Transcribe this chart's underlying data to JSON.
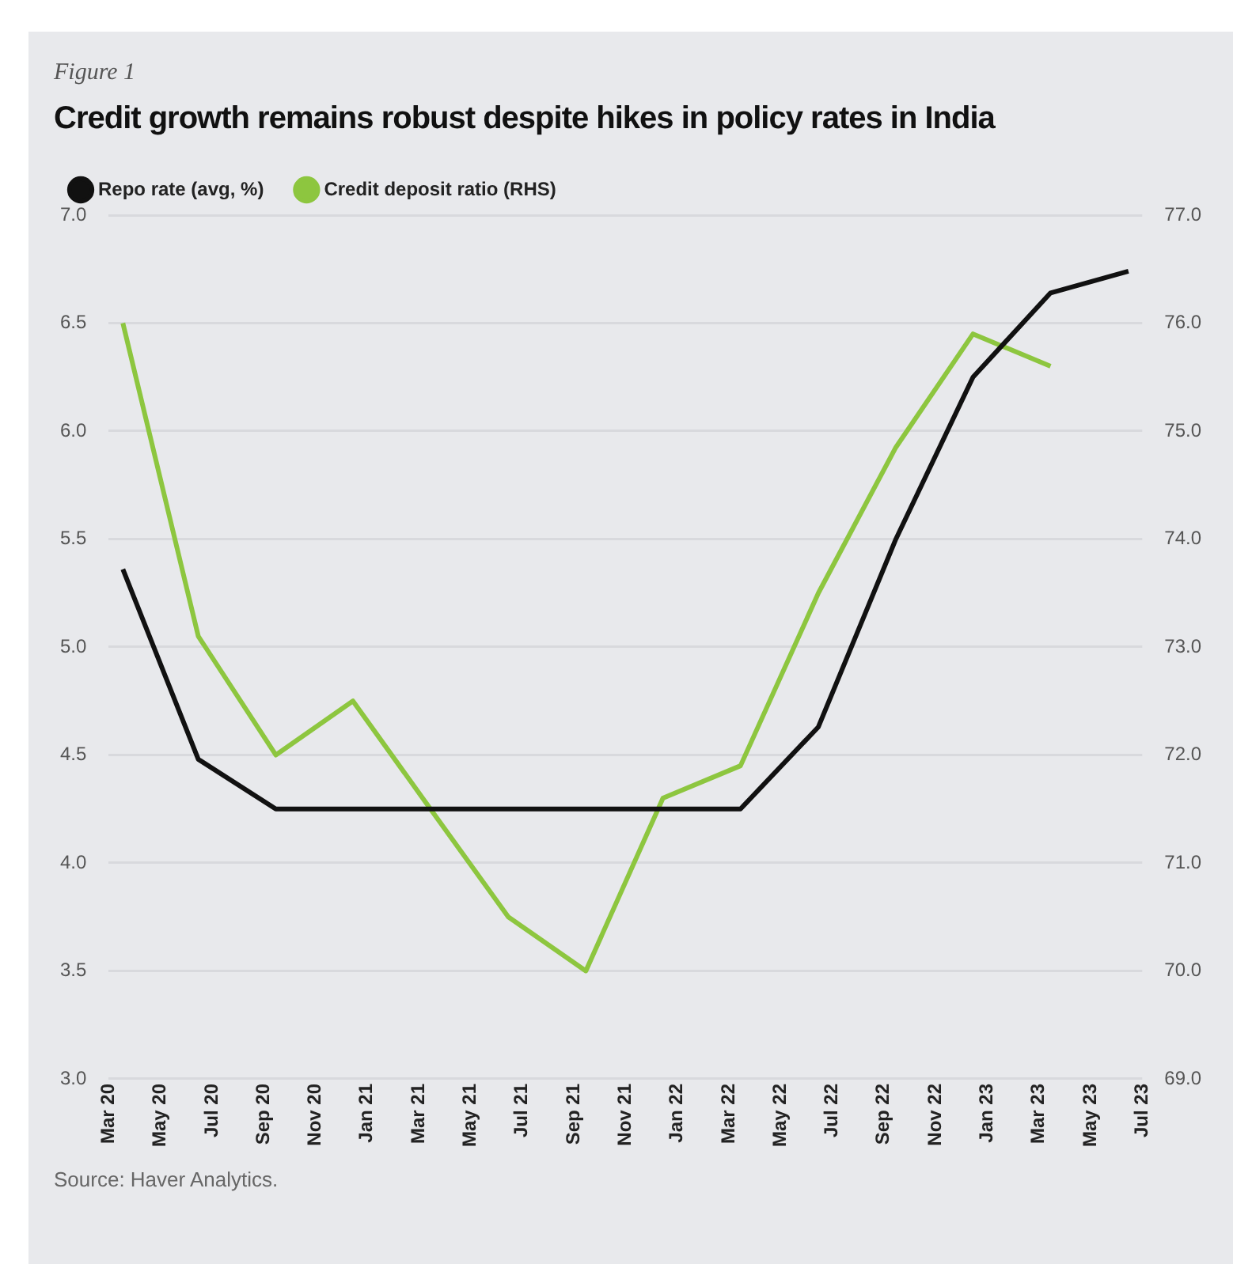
{
  "chart_data": {
    "type": "line",
    "subtitle": "Figure 1",
    "title": "Credit growth remains robust despite hikes in policy rates in India",
    "series": [
      {
        "name": "Repo rate (avg, %)",
        "color": "#111111",
        "x": [
          "2020-03-18",
          "2020-06-15",
          "2020-09-15",
          "2020-12-15",
          "2021-03-15",
          "2021-06-15",
          "2021-09-15",
          "2021-12-15",
          "2022-03-15",
          "2022-06-15",
          "2022-09-15",
          "2022-12-15",
          "2023-03-15",
          "2023-06-15"
        ],
        "values": [
          5.36,
          4.48,
          4.25,
          4.25,
          4.25,
          4.25,
          4.25,
          4.25,
          4.25,
          4.63,
          5.5,
          6.25,
          6.64,
          6.74
        ]
      },
      {
        "name": "Credit deposit ratio (RHS)",
        "color": "#8dc63f",
        "axis": "y2",
        "x": [
          "2020-03-18",
          "2020-06-15",
          "2020-09-15",
          "2020-12-15",
          "2021-03-15",
          "2021-06-15",
          "2021-09-15",
          "2021-12-15",
          "2022-03-15",
          "2022-06-15",
          "2022-09-15",
          "2022-12-15",
          "2023-03-15"
        ],
        "values": [
          76.0,
          73.1,
          72.0,
          72.5,
          71.5,
          70.5,
          70.0,
          71.6,
          71.9,
          73.5,
          74.85,
          75.9,
          75.6
        ]
      }
    ],
    "xlim": [
      "2020-03",
      "2023-07"
    ],
    "xticks": [
      {
        "value": "2020-03",
        "label": "Mar 20"
      },
      {
        "value": "2020-05",
        "label": "May 20"
      },
      {
        "value": "2020-07",
        "label": "Jul 20"
      },
      {
        "value": "2020-09",
        "label": "Sep 20"
      },
      {
        "value": "2020-11",
        "label": "Nov 20"
      },
      {
        "value": "2021-01",
        "label": "Jan 21"
      },
      {
        "value": "2021-03",
        "label": "Mar 21"
      },
      {
        "value": "2021-05",
        "label": "May 21"
      },
      {
        "value": "2021-07",
        "label": "Jul 21"
      },
      {
        "value": "2021-09",
        "label": "Sep 21"
      },
      {
        "value": "2021-11",
        "label": "Nov 21"
      },
      {
        "value": "2022-01",
        "label": "Jan 22"
      },
      {
        "value": "2022-03",
        "label": "Mar 22"
      },
      {
        "value": "2022-05",
        "label": "May 22"
      },
      {
        "value": "2022-07",
        "label": "Jul 22"
      },
      {
        "value": "2022-09",
        "label": "Sep 22"
      },
      {
        "value": "2022-11",
        "label": "Nov 22"
      },
      {
        "value": "2023-01",
        "label": "Jan 23"
      },
      {
        "value": "2023-03",
        "label": "Mar 23"
      },
      {
        "value": "2023-05",
        "label": "May 23"
      },
      {
        "value": "2023-07",
        "label": "Jul 23"
      }
    ],
    "ylim": [
      3.0,
      7.0
    ],
    "yticks": [
      {
        "value": 3,
        "label": "3.0"
      },
      {
        "value": 3.5,
        "label": "3.5"
      },
      {
        "value": 4,
        "label": "4.0"
      },
      {
        "value": 4.5,
        "label": "4.5"
      },
      {
        "value": 5,
        "label": "5.0"
      },
      {
        "value": 5.5,
        "label": "5.5"
      },
      {
        "value": 6,
        "label": "6.0"
      },
      {
        "value": 6.5,
        "label": "6.5"
      },
      {
        "value": 7,
        "label": "7.0"
      }
    ],
    "y2lim": [
      69.0,
      77.0
    ],
    "y2ticks": [
      {
        "value": 69,
        "label": "69.0"
      },
      {
        "value": 70,
        "label": "70.0"
      },
      {
        "value": 71,
        "label": "71.0"
      },
      {
        "value": 72,
        "label": "72.0"
      },
      {
        "value": 73,
        "label": "73.0"
      },
      {
        "value": 74,
        "label": "74.0"
      },
      {
        "value": 75,
        "label": "75.0"
      },
      {
        "value": 76,
        "label": "76.0"
      },
      {
        "value": 77,
        "label": "77.0"
      }
    ],
    "grid": "y",
    "legend": "top",
    "marker": "none",
    "line_style": "solid",
    "annotations": [
      "Source: Haver Analytics."
    ]
  }
}
